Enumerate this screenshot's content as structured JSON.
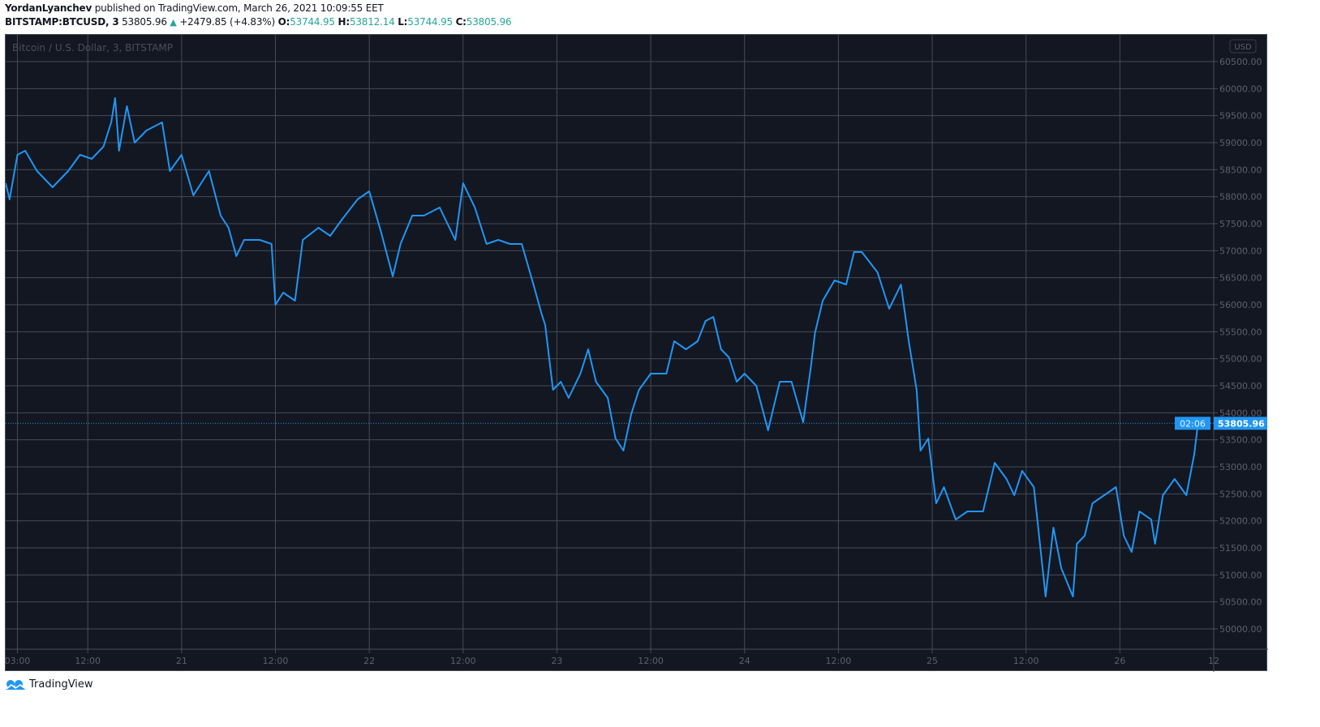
{
  "header": {
    "author": "YordanLyanchev",
    "published": "published on TradingView.com, March 26, 2021 10:09:55 EET",
    "symbol": "BITSTAMP:BTCUSD, 3",
    "last": "53805.96",
    "change": "+2479.85 (+4.83%)",
    "o_label": "O:",
    "o": "53744.95",
    "h_label": "H:",
    "h": "53812.14",
    "l_label": "L:",
    "l": "53744.95",
    "c_label": "C:",
    "c": "53805.96"
  },
  "footer": {
    "brand": "TradingView"
  },
  "colors": {
    "background": "#131722",
    "line": "#2196f3",
    "grid": "#464b58",
    "up": "#26a69a"
  },
  "chart_data": {
    "type": "line",
    "title": "Bitcoin / U.S. Dollar, 3, BITSTAMP",
    "currency_badge": "USD",
    "last_price_label": "53805.96",
    "countdown_label": "02:06",
    "xlim": [
      "2021-03-20 01:30",
      "2021-03-26 12:00"
    ],
    "ylim": [
      49625,
      60995
    ],
    "grid": true,
    "y_ticks": [
      50000,
      50500,
      51000,
      51500,
      52000,
      52500,
      53000,
      53500,
      54000,
      54500,
      55000,
      55500,
      56000,
      56500,
      57000,
      57500,
      58000,
      58500,
      59000,
      59500,
      60000,
      60500
    ],
    "y_tick_labels": [
      "50000.00",
      "50500.00",
      "51000.00",
      "51500.00",
      "52000.00",
      "52500.00",
      "53000.00",
      "53500.00",
      "54000.00",
      "54500.00",
      "55000.00",
      "55500.00",
      "56000.00",
      "56500.00",
      "57000.00",
      "57500.00",
      "58000.00",
      "58500.00",
      "59000.00",
      "59500.00",
      "60000.00",
      "60500.00"
    ],
    "x_ticks": [
      {
        "t": "2021-03-20 03:00",
        "label": "03:00"
      },
      {
        "t": "2021-03-20 12:00",
        "label": "12:00"
      },
      {
        "t": "2021-03-21 00:00",
        "label": "21"
      },
      {
        "t": "2021-03-21 12:00",
        "label": "12:00"
      },
      {
        "t": "2021-03-22 00:00",
        "label": "22"
      },
      {
        "t": "2021-03-22 12:00",
        "label": "12:00"
      },
      {
        "t": "2021-03-23 00:00",
        "label": "23"
      },
      {
        "t": "2021-03-23 12:00",
        "label": "12:00"
      },
      {
        "t": "2021-03-24 00:00",
        "label": "24"
      },
      {
        "t": "2021-03-24 12:00",
        "label": "12:00"
      },
      {
        "t": "2021-03-25 00:00",
        "label": "25"
      },
      {
        "t": "2021-03-25 12:00",
        "label": "12:00"
      },
      {
        "t": "2021-03-26 00:00",
        "label": "26"
      },
      {
        "t": "2021-03-26 12:00",
        "label": "12"
      }
    ],
    "series": [
      {
        "points": [
          [
            "2021-03-20 01:30",
            58250
          ],
          [
            "2021-03-20 02:00",
            57950
          ],
          [
            "2021-03-20 03:00",
            58775
          ],
          [
            "2021-03-20 04:00",
            58850
          ],
          [
            "2021-03-20 05:30",
            58475
          ],
          [
            "2021-03-20 07:30",
            58175
          ],
          [
            "2021-03-20 09:30",
            58475
          ],
          [
            "2021-03-20 11:00",
            58775
          ],
          [
            "2021-03-20 12:30",
            58700
          ],
          [
            "2021-03-20 14:00",
            58925
          ],
          [
            "2021-03-20 15:00",
            59375
          ],
          [
            "2021-03-20 15:30",
            59825
          ],
          [
            "2021-03-20 16:00",
            58850
          ],
          [
            "2021-03-20 17:00",
            59675
          ],
          [
            "2021-03-20 18:00",
            59000
          ],
          [
            "2021-03-20 19:30",
            59225
          ],
          [
            "2021-03-20 21:30",
            59375
          ],
          [
            "2021-03-20 22:30",
            58475
          ],
          [
            "2021-03-21 00:00",
            58775
          ],
          [
            "2021-03-21 01:30",
            58025
          ],
          [
            "2021-03-21 03:30",
            58475
          ],
          [
            "2021-03-21 05:00",
            57650
          ],
          [
            "2021-03-21 06:00",
            57425
          ],
          [
            "2021-03-21 07:00",
            56900
          ],
          [
            "2021-03-21 08:00",
            57200
          ],
          [
            "2021-03-21 10:00",
            57200
          ],
          [
            "2021-03-21 11:30",
            57125
          ],
          [
            "2021-03-21 12:00",
            56000
          ],
          [
            "2021-03-21 13:00",
            56225
          ],
          [
            "2021-03-21 14:30",
            56075
          ],
          [
            "2021-03-21 15:30",
            57200
          ],
          [
            "2021-03-21 17:30",
            57425
          ],
          [
            "2021-03-21 19:00",
            57275
          ],
          [
            "2021-03-21 20:30",
            57575
          ],
          [
            "2021-03-21 22:30",
            57950
          ],
          [
            "2021-03-22 00:00",
            58100
          ],
          [
            "2021-03-22 01:30",
            57350
          ],
          [
            "2021-03-22 03:00",
            56525
          ],
          [
            "2021-03-22 04:00",
            57125
          ],
          [
            "2021-03-22 05:30",
            57650
          ],
          [
            "2021-03-22 07:00",
            57650
          ],
          [
            "2021-03-22 09:00",
            57800
          ],
          [
            "2021-03-22 11:00",
            57200
          ],
          [
            "2021-03-22 12:00",
            58250
          ],
          [
            "2021-03-22 13:30",
            57800
          ],
          [
            "2021-03-22 15:00",
            57125
          ],
          [
            "2021-03-22 16:30",
            57200
          ],
          [
            "2021-03-22 18:00",
            57125
          ],
          [
            "2021-03-22 19:30",
            57125
          ],
          [
            "2021-03-22 21:00",
            56375
          ],
          [
            "2021-03-22 22:00",
            55850
          ],
          [
            "2021-03-22 22:30",
            55625
          ],
          [
            "2021-03-22 23:30",
            54425
          ],
          [
            "2021-03-23 00:30",
            54575
          ],
          [
            "2021-03-23 01:30",
            54275
          ],
          [
            "2021-03-23 03:00",
            54725
          ],
          [
            "2021-03-23 04:00",
            55175
          ],
          [
            "2021-03-23 05:00",
            54575
          ],
          [
            "2021-03-23 06:30",
            54275
          ],
          [
            "2021-03-23 07:30",
            53525
          ],
          [
            "2021-03-23 08:30",
            53300
          ],
          [
            "2021-03-23 09:30",
            53975
          ],
          [
            "2021-03-23 10:30",
            54425
          ],
          [
            "2021-03-23 12:00",
            54725
          ],
          [
            "2021-03-23 14:00",
            54725
          ],
          [
            "2021-03-23 15:00",
            55325
          ],
          [
            "2021-03-23 16:30",
            55175
          ],
          [
            "2021-03-23 18:00",
            55325
          ],
          [
            "2021-03-23 19:00",
            55700
          ],
          [
            "2021-03-23 20:00",
            55775
          ],
          [
            "2021-03-23 21:00",
            55175
          ],
          [
            "2021-03-23 22:00",
            55025
          ],
          [
            "2021-03-23 23:00",
            54575
          ],
          [
            "2021-03-24 00:00",
            54725
          ],
          [
            "2021-03-24 01:30",
            54500
          ],
          [
            "2021-03-24 03:00",
            53675
          ],
          [
            "2021-03-24 04:30",
            54575
          ],
          [
            "2021-03-24 06:00",
            54575
          ],
          [
            "2021-03-24 07:30",
            53825
          ],
          [
            "2021-03-24 08:30",
            54875
          ],
          [
            "2021-03-24 09:00",
            55475
          ],
          [
            "2021-03-24 10:00",
            56075
          ],
          [
            "2021-03-24 11:30",
            56450
          ],
          [
            "2021-03-24 13:00",
            56375
          ],
          [
            "2021-03-24 14:00",
            56975
          ],
          [
            "2021-03-24 15:00",
            56975
          ],
          [
            "2021-03-24 17:00",
            56600
          ],
          [
            "2021-03-24 18:30",
            55925
          ],
          [
            "2021-03-24 20:00",
            56375
          ],
          [
            "2021-03-24 21:00",
            55325
          ],
          [
            "2021-03-24 22:00",
            54425
          ],
          [
            "2021-03-24 22:30",
            53300
          ],
          [
            "2021-03-24 23:30",
            53525
          ],
          [
            "2021-03-25 00:30",
            52325
          ],
          [
            "2021-03-25 01:30",
            52625
          ],
          [
            "2021-03-25 03:00",
            52025
          ],
          [
            "2021-03-25 04:30",
            52175
          ],
          [
            "2021-03-25 06:30",
            52175
          ],
          [
            "2021-03-25 08:00",
            53075
          ],
          [
            "2021-03-25 09:30",
            52775
          ],
          [
            "2021-03-25 10:30",
            52475
          ],
          [
            "2021-03-25 11:30",
            52925
          ],
          [
            "2021-03-25 13:00",
            52625
          ],
          [
            "2021-03-25 14:30",
            50600
          ],
          [
            "2021-03-25 15:30",
            51875
          ],
          [
            "2021-03-25 16:30",
            51125
          ],
          [
            "2021-03-25 18:00",
            50600
          ],
          [
            "2021-03-25 18:30",
            51575
          ],
          [
            "2021-03-25 19:30",
            51725
          ],
          [
            "2021-03-25 20:30",
            52325
          ],
          [
            "2021-03-25 22:00",
            52475
          ],
          [
            "2021-03-25 23:30",
            52625
          ],
          [
            "2021-03-26 00:30",
            51725
          ],
          [
            "2021-03-26 01:30",
            51425
          ],
          [
            "2021-03-26 02:30",
            52175
          ],
          [
            "2021-03-26 04:00",
            52025
          ],
          [
            "2021-03-26 04:30",
            51575
          ],
          [
            "2021-03-26 05:30",
            52475
          ],
          [
            "2021-03-26 07:00",
            52775
          ],
          [
            "2021-03-26 08:30",
            52475
          ],
          [
            "2021-03-26 09:30",
            53225
          ],
          [
            "2021-03-26 10:00",
            53805.96
          ]
        ]
      }
    ]
  }
}
